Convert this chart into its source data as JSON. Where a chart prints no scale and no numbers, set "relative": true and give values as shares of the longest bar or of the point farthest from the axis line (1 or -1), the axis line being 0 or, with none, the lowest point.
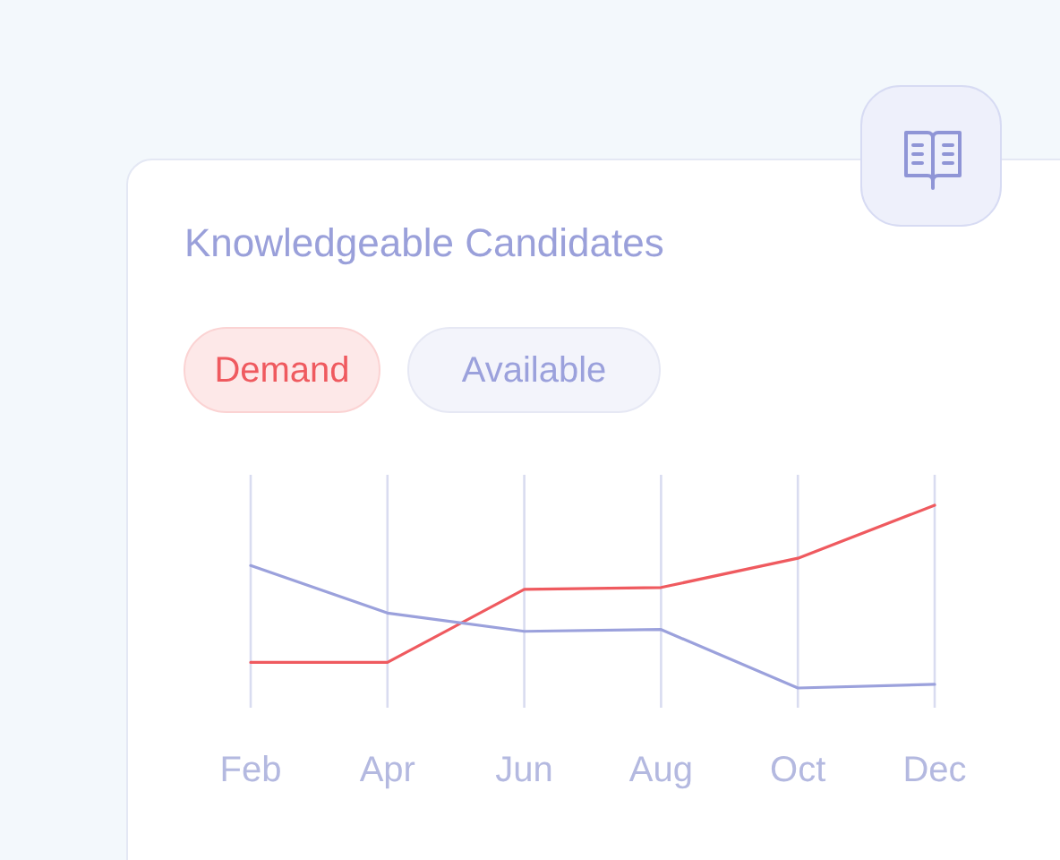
{
  "chart_data": {
    "type": "line",
    "title": "Knowledgeable Candidates",
    "relative": true,
    "categories": [
      "Feb",
      "Apr",
      "Jun",
      "Aug",
      "Oct",
      "Dec"
    ],
    "series": [
      {
        "name": "Demand",
        "color": "#ef5a5f",
        "values": [
          0.14,
          0.14,
          0.54,
          0.55,
          0.71,
          1
        ]
      },
      {
        "name": "Available",
        "color": "#9ba1dc",
        "values": [
          0.67,
          0.41,
          0.31,
          0.32,
          0,
          0.02
        ]
      }
    ],
    "grid": "x",
    "legend": "top left",
    "marker": "none",
    "line_style": "solid"
  }
}
